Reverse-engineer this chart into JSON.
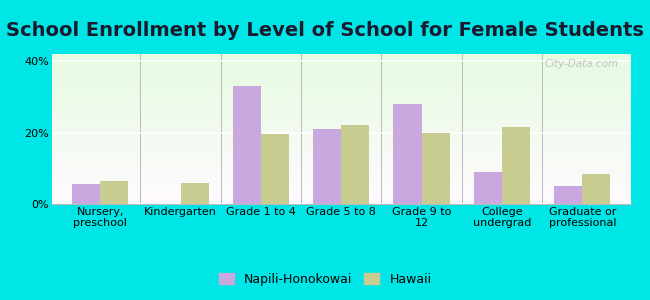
{
  "title": "School Enrollment by Level of School for Female Students",
  "categories": [
    "Nursery,\npreschool",
    "Kindergarten",
    "Grade 1 to 4",
    "Grade 5 to 8",
    "Grade 9 to\n12",
    "College\nundergrad",
    "Graduate or\nprofessional"
  ],
  "napili_values": [
    5.5,
    0,
    33,
    21,
    28,
    9,
    5
  ],
  "hawaii_values": [
    6.5,
    6,
    19.5,
    22,
    20,
    21.5,
    8.5
  ],
  "napili_color": "#c9a8e0",
  "hawaii_color": "#c8cc90",
  "ylim": [
    0,
    42
  ],
  "yticks": [
    0,
    20,
    40
  ],
  "ytick_labels": [
    "0%",
    "20%",
    "40%"
  ],
  "fig_bg_color": "#00e5e5",
  "legend_napili": "Napili-Honokowai",
  "legend_hawaii": "Hawaii",
  "title_fontsize": 14,
  "tick_fontsize": 8,
  "legend_fontsize": 9,
  "bar_width": 0.35,
  "watermark": "City-Data.com"
}
